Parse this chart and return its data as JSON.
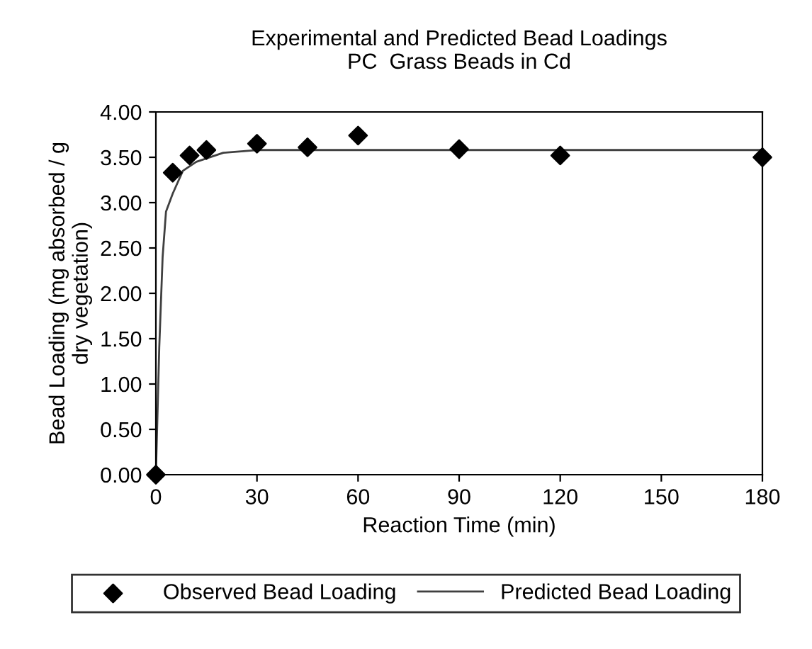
{
  "chart_data": {
    "type": "scatter",
    "title": "Experimental and Predicted Bead Loadings\nPC  Grass Beads in Cd",
    "xlabel": "Reaction Time (min)",
    "ylabel": "Bead Loading (mg absorbed / g\ndry vegetation)",
    "xlim": [
      0,
      180
    ],
    "xticks": [
      0,
      30,
      60,
      90,
      120,
      150,
      180
    ],
    "ylim": [
      0,
      4
    ],
    "yticks": [
      {
        "value": 0,
        "label": "0.00"
      },
      {
        "value": 0.5,
        "label": "0.50"
      },
      {
        "value": 1,
        "label": "1.00"
      },
      {
        "value": 1.5,
        "label": "1.50"
      },
      {
        "value": 2,
        "label": "2.00"
      },
      {
        "value": 2.5,
        "label": "2.50"
      },
      {
        "value": 3,
        "label": "3.00"
      },
      {
        "value": 3.5,
        "label": "3.50"
      },
      {
        "value": 4,
        "label": "4.00"
      }
    ],
    "grid": false,
    "legend": "bottom",
    "series": [
      {
        "name": "Observed Bead Loading",
        "marker": "diamond",
        "color": "#000000",
        "x": [
          0,
          5,
          10,
          15,
          30,
          45,
          60,
          90,
          120,
          180
        ],
        "values": [
          0,
          3.33,
          3.52,
          3.58,
          3.65,
          3.61,
          3.74,
          3.59,
          3.52,
          3.5
        ]
      },
      {
        "name": "Predicted Bead Loading",
        "type": "line",
        "marker": "none",
        "line_style": "solid",
        "color": "#404040",
        "x": [
          0,
          1,
          2,
          3,
          5,
          8,
          12,
          20,
          30,
          180
        ],
        "values": [
          0,
          1.4,
          2.4,
          2.9,
          3.1,
          3.35,
          3.45,
          3.55,
          3.58,
          3.58
        ]
      }
    ]
  }
}
